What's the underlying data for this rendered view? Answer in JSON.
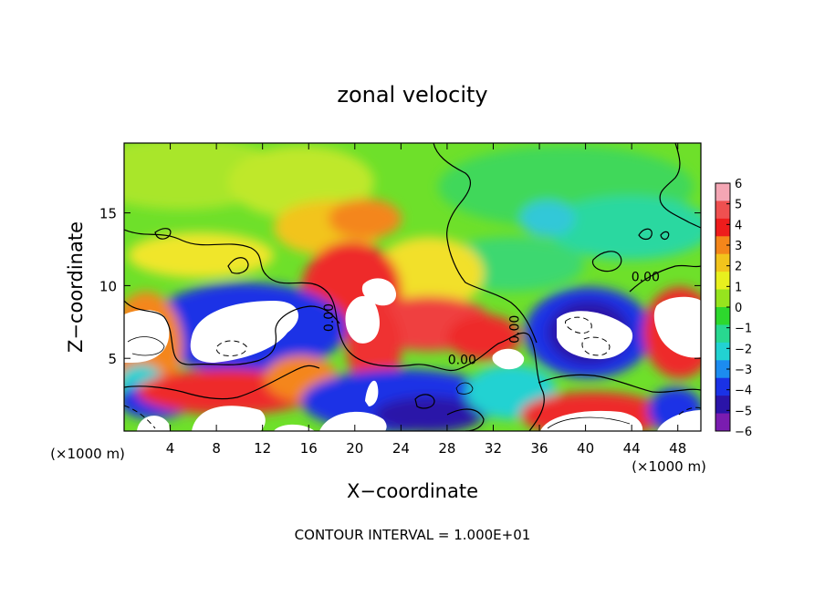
{
  "chart_data": {
    "type": "heatmap",
    "title": "zonal velocity",
    "xlabel": "X−coordinate",
    "ylabel": "Z−coordinate",
    "x_unit_left": "(×1000 m)",
    "x_unit_right": "(×1000 m)",
    "footer": "CONTOUR INTERVAL = 1.000E+01",
    "xlim": [
      0,
      50
    ],
    "ylim": [
      0,
      19.8
    ],
    "x_ticks": [
      4,
      8,
      12,
      16,
      20,
      24,
      28,
      32,
      36,
      40,
      44,
      48
    ],
    "y_ticks": [
      5,
      10,
      15
    ],
    "colorbar": {
      "range": [
        -6,
        6
      ],
      "ticks": [
        6,
        5,
        4,
        3,
        2,
        1,
        0,
        -1,
        -2,
        -3,
        -4,
        -5,
        -6
      ],
      "tick_labels": [
        "6",
        "5",
        "4",
        "3",
        "2",
        "1",
        "0",
        "−1",
        "−2",
        "−3",
        "−4",
        "−5",
        "−6"
      ],
      "colors": [
        "#f4a6b4",
        "#ef5050",
        "#ee1c1c",
        "#f4861a",
        "#f2c41c",
        "#e8f01e",
        "#96e41e",
        "#2dd82d",
        "#28d890",
        "#22d2d2",
        "#1c8cf0",
        "#1a32e6",
        "#2a14a8",
        "#7a1cb0"
      ]
    },
    "contour_labels": [
      {
        "text": "0.00",
        "x": 29.3,
        "y": 4.6
      },
      {
        "text": "0.00",
        "x": 45.2,
        "y": 10.3
      },
      {
        "text": "0.00",
        "x": 18.1,
        "y": 7.8
      },
      {
        "text": "0.00",
        "x": 34.2,
        "y": 7.0
      }
    ]
  }
}
